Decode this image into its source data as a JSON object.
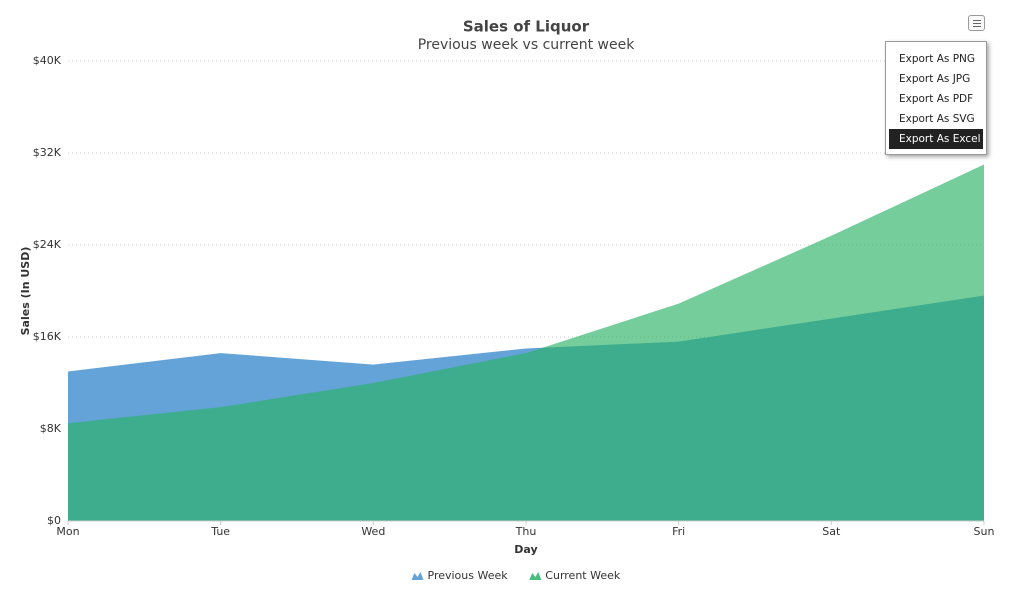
{
  "chart_data": {
    "type": "area",
    "title": "Sales of Liquor",
    "subtitle": "Previous week vs current week",
    "x_label": "Day",
    "y_label": "Sales (In USD)",
    "categories": [
      "Mon",
      "Tue",
      "Wed",
      "Thu",
      "Fri",
      "Sat",
      "Sun"
    ],
    "series": [
      {
        "name": "Previous Week",
        "color": "#63a3d7",
        "opacity": 1,
        "values": [
          13000,
          14600,
          13600,
          15000,
          15600,
          17600,
          19600
        ]
      },
      {
        "name": "Current Week",
        "color": "#29b266",
        "opacity": 0.65,
        "values": [
          8500,
          9900,
          12000,
          14600,
          18900,
          24800,
          31000
        ]
      }
    ],
    "ylim": [
      0,
      40000
    ],
    "yticks": [
      {
        "value": 0,
        "label": "$0"
      },
      {
        "value": 8000,
        "label": "$8K"
      },
      {
        "value": 16000,
        "label": "$16K"
      },
      {
        "value": 24000,
        "label": "$24K"
      },
      {
        "value": 32000,
        "label": "$32K"
      },
      {
        "value": 40000,
        "label": "$40K"
      }
    ],
    "grid": true,
    "legend": "bottom"
  },
  "export_menu": {
    "items": [
      "Export As PNG",
      "Export As JPG",
      "Export As PDF",
      "Export As SVG",
      "Export As Excel"
    ]
  }
}
